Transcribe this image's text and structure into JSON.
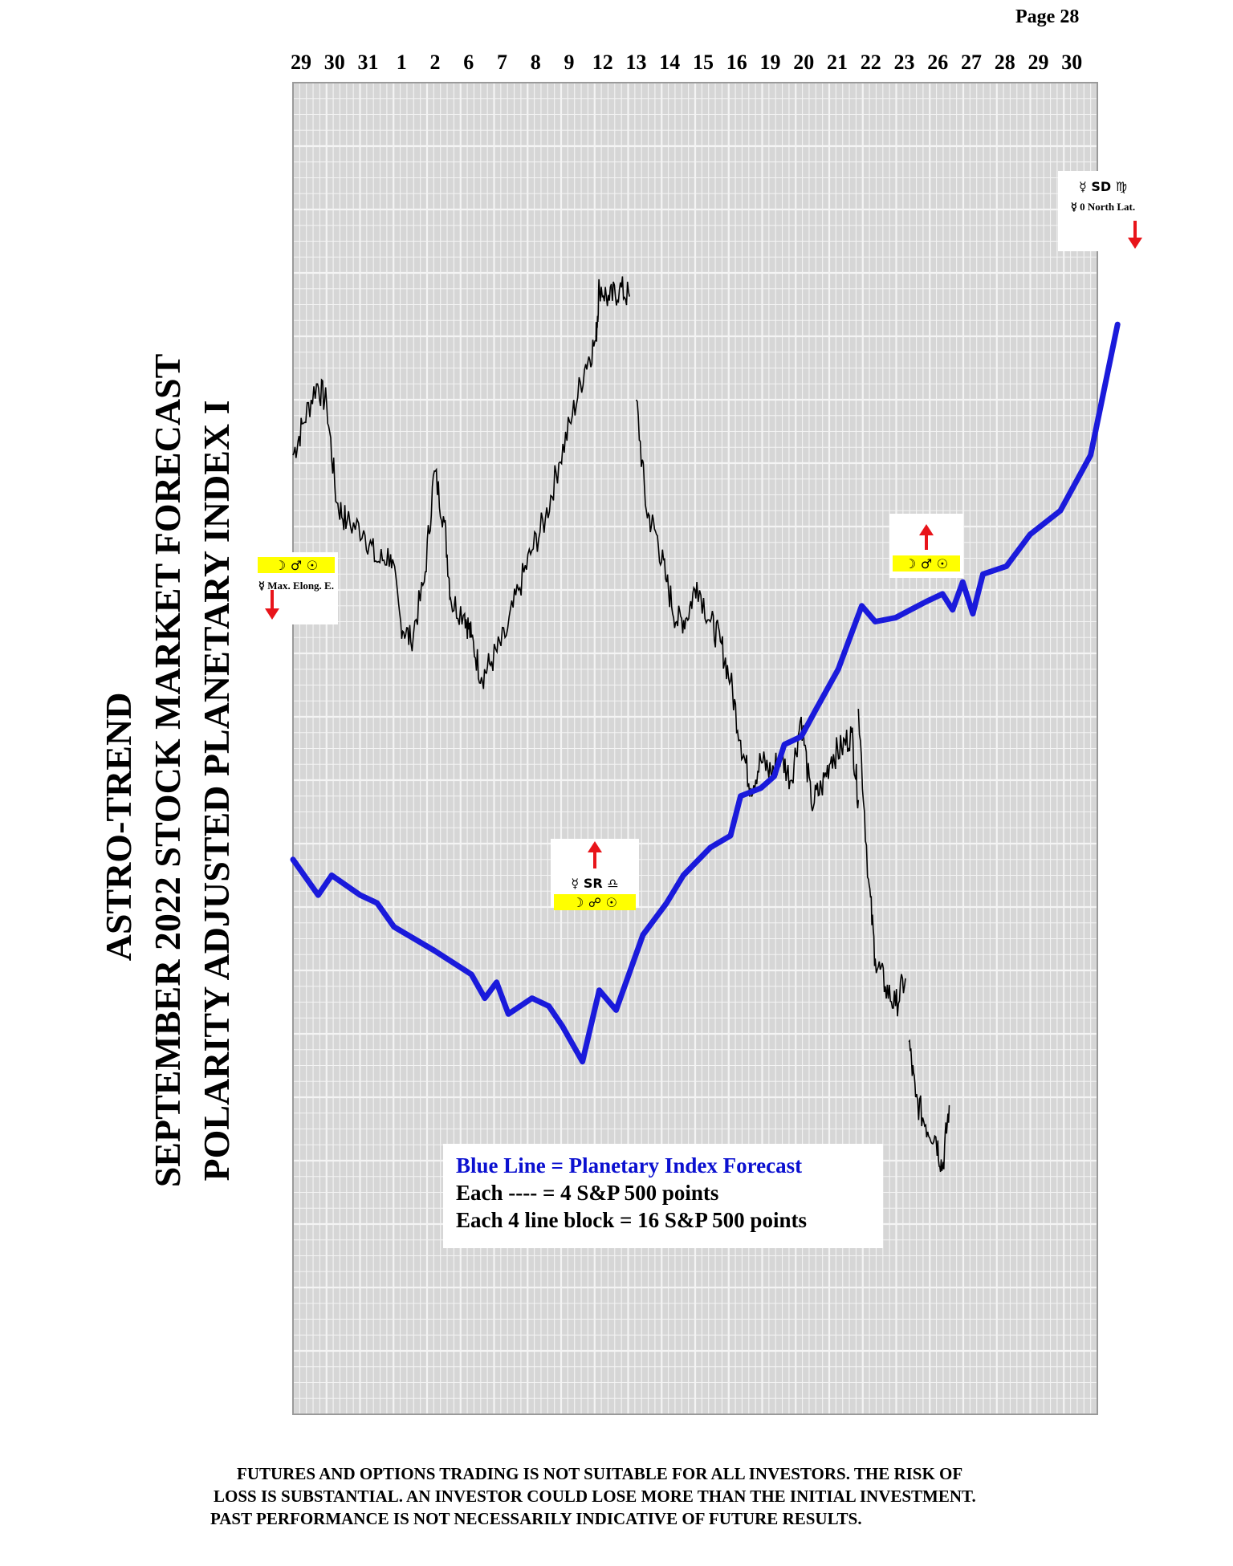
{
  "page": {
    "number_label": "Page  28"
  },
  "titles": [
    "ASTRO-TREND",
    "SEPTEMBER 2022  STOCK MARKET FORECAST",
    "POLARITY ADJUSTED PLANETARY INDEX I"
  ],
  "colors": {
    "forecast_line": "#1a1adb",
    "grid_line": "#9a9a9a",
    "grid_bg": "#d6d6d6",
    "arrow": "#e8141a",
    "glyph_bg": "#ffff00",
    "price_line": "#000000"
  },
  "legend": {
    "line1": "Blue Line = Planetary Index Forecast",
    "line2": "Each ---- =   4 S&P 500 points",
    "line3": "Each 4 line block =  16  S&P 500 points"
  },
  "disclaimer": {
    "line1": "FUTURES AND OPTIONS TRADING IS NOT SUITABLE FOR ALL INVESTORS.  THE RISK OF",
    "line2": "LOSS IS SUBSTANTIAL.  AN INVESTOR COULD LOSE MORE THAN THE INITIAL INVESTMENT.",
    "line3": "PAST PERFORMANCE IS NOT NECESSARILY INDICATIVE OF FUTURE RESULTS."
  },
  "annotations": [
    {
      "day_index": 0,
      "glyphs": "☽ ♂ ☉",
      "note": "☿ Max. Elong. E.",
      "arrow": "down",
      "icon": "moon-mars-sun-glyphs"
    },
    {
      "day_index": 9,
      "glyphs": "☿ SR ♎ / ☽ ☍ ☉",
      "note": "",
      "arrow": "up",
      "icon": "mercury-retrograde-libra-glyphs"
    },
    {
      "day_index": 20,
      "glyphs": "☽ ♂ ☉",
      "note": "",
      "arrow": "up",
      "icon": "moon-mars-sun-glyphs"
    },
    {
      "day_index": 24,
      "glyphs": "☿ SD ♍",
      "note": "☿ 0 North Lat.",
      "arrow": "down",
      "icon": "mercury-direct-virgo-glyphs"
    }
  ],
  "chart_data": {
    "type": "line",
    "title": "",
    "xlabel": "",
    "ylabel": "",
    "x_tick_labels": [
      "29",
      "30",
      "31",
      "1",
      "2",
      "6",
      "7",
      "8",
      "9",
      "12",
      "13",
      "14",
      "15",
      "16",
      "19",
      "20",
      "21",
      "22",
      "23",
      "26",
      "27",
      "28",
      "29",
      "30"
    ],
    "grid": true,
    "y_units": "relative S&P 500 points (4 per minor line, 16 per block)",
    "ylim": [
      0,
      336
    ],
    "series": [
      {
        "name": "Blue Line = Planetary Index Forecast",
        "style": "thick blue",
        "points": [
          [
            0.0,
            140
          ],
          [
            0.75,
            131
          ],
          [
            1.15,
            136
          ],
          [
            2.0,
            131
          ],
          [
            2.5,
            129
          ],
          [
            3.0,
            123
          ],
          [
            4.2,
            117
          ],
          [
            5.3,
            111
          ],
          [
            5.7,
            105
          ],
          [
            6.05,
            109
          ],
          [
            6.4,
            101
          ],
          [
            7.1,
            105
          ],
          [
            7.6,
            103
          ],
          [
            8.0,
            98
          ],
          [
            8.6,
            89
          ],
          [
            9.1,
            107
          ],
          [
            9.6,
            102
          ],
          [
            10.4,
            121
          ],
          [
            11.1,
            129
          ],
          [
            11.6,
            136
          ],
          [
            12.4,
            143
          ],
          [
            13.0,
            146
          ],
          [
            13.3,
            156
          ],
          [
            13.9,
            158
          ],
          [
            14.3,
            161
          ],
          [
            14.6,
            169
          ],
          [
            15.1,
            171
          ],
          [
            15.55,
            178
          ],
          [
            16.2,
            188
          ],
          [
            16.9,
            204
          ],
          [
            17.3,
            200
          ],
          [
            17.9,
            201
          ],
          [
            18.8,
            205
          ],
          [
            19.3,
            207
          ],
          [
            19.6,
            203
          ],
          [
            19.9,
            210
          ],
          [
            20.2,
            202
          ],
          [
            20.5,
            212
          ],
          [
            21.2,
            214
          ],
          [
            21.9,
            222
          ],
          [
            22.8,
            228
          ],
          [
            23.7,
            242
          ],
          [
            24.5,
            275
          ]
        ]
      },
      {
        "name": "S&P 500 (actual)",
        "style": "thin black",
        "segments": [
          [
            [
              0.0,
              242
            ],
            [
              0.3,
              250
            ],
            [
              0.7,
              260
            ],
            [
              1.0,
              255
            ],
            [
              1.3,
              230
            ],
            [
              1.6,
              225
            ],
            [
              2.1,
              223
            ],
            [
              2.5,
              215
            ],
            [
              2.9,
              217
            ],
            [
              3.2,
              200
            ],
            [
              3.5,
              195
            ],
            [
              3.9,
              210
            ],
            [
              4.2,
              238
            ],
            [
              4.5,
              225
            ],
            [
              4.7,
              205
            ],
            [
              5.1,
              202
            ],
            [
              5.3,
              196
            ],
            [
              5.6,
              186
            ],
            [
              5.9,
              190
            ],
            [
              6.3,
              196
            ],
            [
              6.7,
              208
            ],
            [
              7.1,
              218
            ],
            [
              7.5,
              226
            ],
            [
              7.9,
              240
            ],
            [
              8.3,
              252
            ],
            [
              8.7,
              265
            ],
            [
              9.0,
              271
            ],
            [
              9.1,
              285
            ],
            [
              9.4,
              281
            ],
            [
              9.7,
              284
            ],
            [
              10.0,
              282
            ]
          ],
          [
            [
              10.2,
              256
            ],
            [
              10.5,
              228
            ],
            [
              10.8,
              222
            ],
            [
              11.1,
              210
            ],
            [
              11.4,
              200
            ],
            [
              11.7,
              201
            ],
            [
              12.0,
              210
            ],
            [
              12.4,
              200
            ],
            [
              12.7,
              195
            ],
            [
              13.0,
              185
            ],
            [
              13.3,
              170
            ],
            [
              13.6,
              158
            ],
            [
              13.9,
              165
            ],
            [
              14.2,
              162
            ],
            [
              14.5,
              166
            ],
            [
              14.8,
              160
            ],
            [
              15.1,
              176
            ],
            [
              15.4,
              154
            ],
            [
              15.7,
              158
            ],
            [
              16.0,
              166
            ],
            [
              16.3,
              168
            ],
            [
              16.6,
              172
            ],
            [
              16.8,
              155
            ]
          ],
          [
            [
              16.8,
              178
            ],
            [
              17.1,
              135
            ],
            [
              17.3,
              115
            ],
            [
              17.6,
              108
            ],
            [
              17.9,
              103
            ],
            [
              18.2,
              110
            ]
          ],
          [
            [
              18.3,
              94
            ],
            [
              18.5,
              80
            ],
            [
              18.8,
              73
            ],
            [
              19.1,
              70
            ],
            [
              19.3,
              62
            ],
            [
              19.5,
              78
            ]
          ]
        ]
      }
    ]
  }
}
